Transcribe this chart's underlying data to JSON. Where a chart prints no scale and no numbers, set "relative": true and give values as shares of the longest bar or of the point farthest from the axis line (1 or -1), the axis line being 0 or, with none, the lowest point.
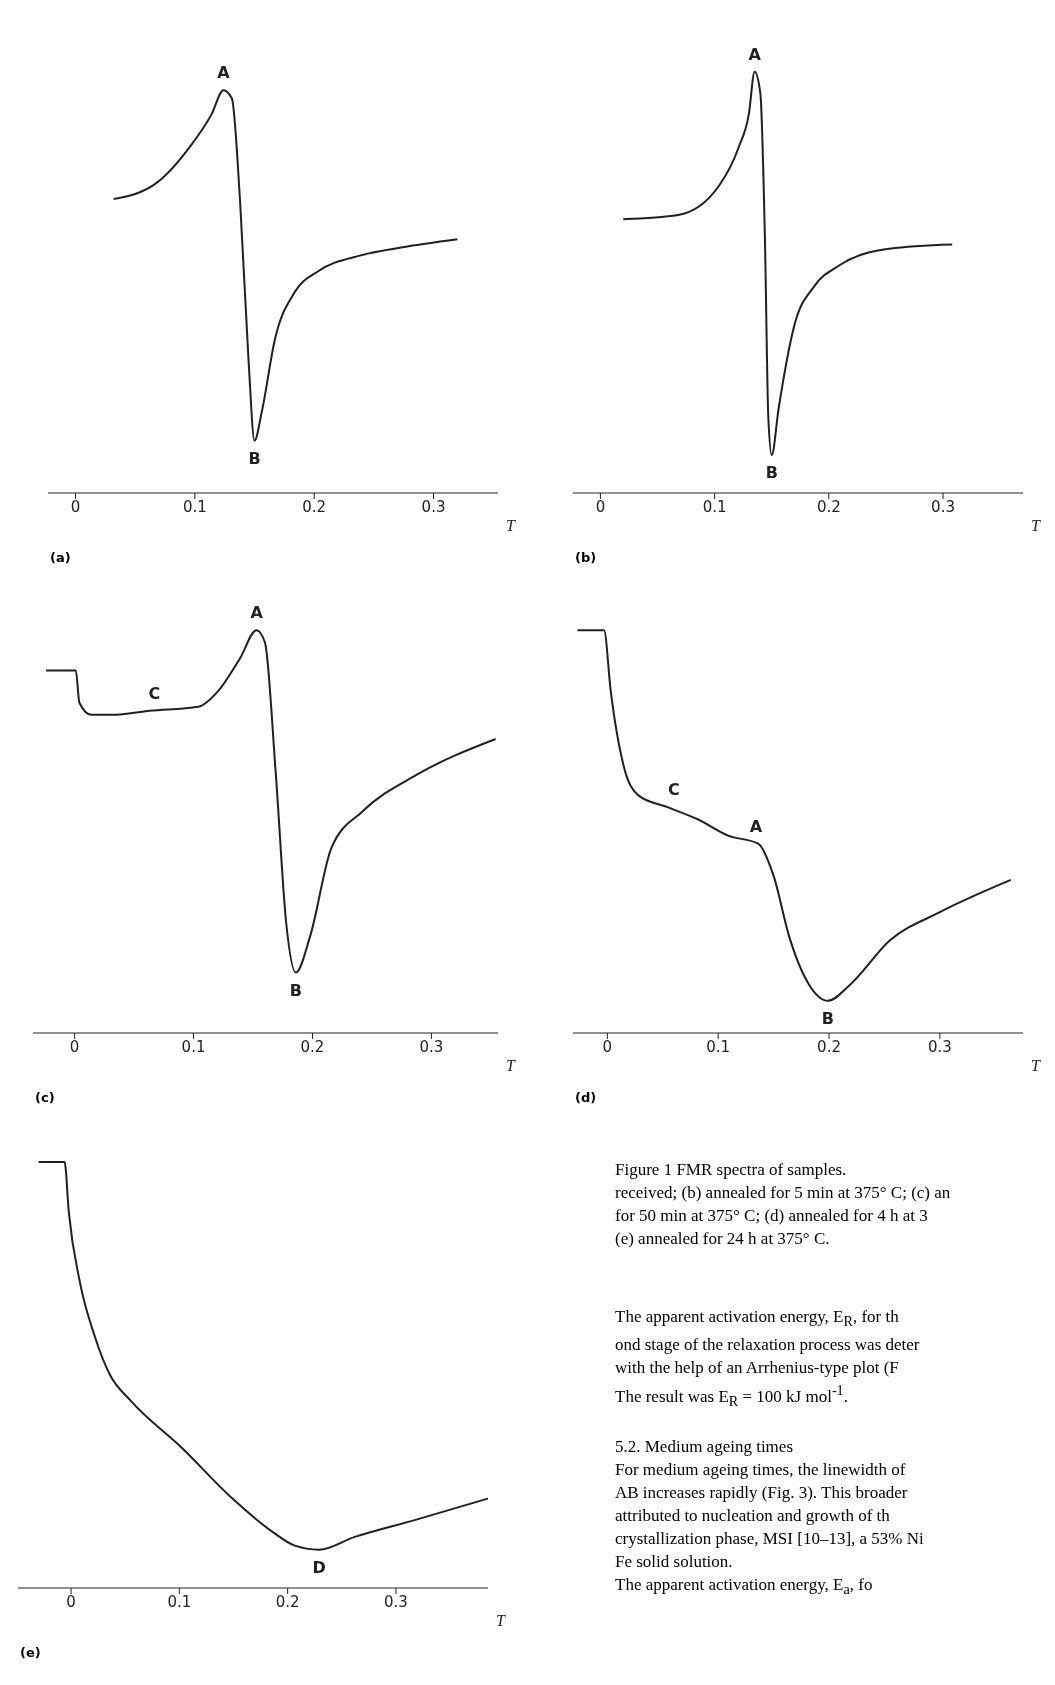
{
  "chart_data": [
    {
      "type": "line",
      "title": "(a)",
      "xlabel": "T",
      "relative": true,
      "color": "#231f20",
      "xlim": [
        -0.023,
        0.354
      ],
      "xticks": [
        0,
        0.1,
        0.2,
        0.3
      ],
      "x": [
        0.032,
        0.068,
        0.096,
        0.114,
        0.124,
        0.131,
        0.138,
        0.145,
        0.15,
        0.156,
        0.167,
        0.184,
        0.203,
        0.239,
        0.274,
        0.32
      ],
      "values": [
        0.73,
        0.77,
        0.86,
        0.94,
        1,
        0.98,
        0.72,
        0.33,
        0.13,
        0.2,
        0.38,
        0.5,
        0.55,
        0.59,
        0.61,
        0.63
      ],
      "annotations": [
        {
          "text": "A",
          "x": 0.124,
          "y": 1
        },
        {
          "text": "B",
          "x": 0.15,
          "y": 0.13
        }
      ]
    },
    {
      "type": "line",
      "title": "(b)",
      "xlabel": "T",
      "relative": true,
      "color": "#231f20",
      "xlim": [
        -0.024,
        0.37
      ],
      "xticks": [
        0,
        0.1,
        0.2,
        0.3
      ],
      "x": [
        0.02,
        0.068,
        0.104,
        0.121,
        0.13,
        0.135,
        0.14,
        0.144,
        0.147,
        0.15,
        0.156,
        0.17,
        0.187,
        0.209,
        0.253,
        0.308
      ],
      "values": [
        0.65,
        0.66,
        0.73,
        0.82,
        0.9,
        1,
        0.95,
        0.61,
        0.18,
        0.09,
        0.2,
        0.4,
        0.49,
        0.54,
        0.58,
        0.59
      ],
      "annotations": [
        {
          "text": "A",
          "x": 0.135,
          "y": 1
        },
        {
          "text": "B",
          "x": 0.15,
          "y": 0.09
        }
      ]
    },
    {
      "type": "line",
      "title": "(c)",
      "xlabel": "T",
      "relative": true,
      "color": "#231f20",
      "xlim": [
        -0.035,
        0.356
      ],
      "xticks": [
        0,
        0.1,
        0.2,
        0.3
      ],
      "x": [
        -0.024,
        0.001,
        0.004,
        0.014,
        0.032,
        0.063,
        0.104,
        0.121,
        0.139,
        0.153,
        0.16,
        0.169,
        0.178,
        0.186,
        0.198,
        0.216,
        0.242,
        0.287,
        0.354
      ],
      "values": [
        0.9,
        0.9,
        0.82,
        0.79,
        0.79,
        0.8,
        0.81,
        0.85,
        0.93,
        1,
        0.97,
        0.65,
        0.27,
        0.15,
        0.24,
        0.46,
        0.55,
        0.64,
        0.73
      ],
      "annotations": [
        {
          "text": "C",
          "x": 0.067,
          "y": 0.8
        },
        {
          "text": "A",
          "x": 0.153,
          "y": 1
        },
        {
          "text": "B",
          "x": 0.186,
          "y": 0.15
        }
      ]
    },
    {
      "type": "line",
      "title": "(d)",
      "xlabel": "T",
      "relative": true,
      "color": "#231f20",
      "xlim": [
        -0.031,
        0.375
      ],
      "xticks": [
        0,
        0.1,
        0.2,
        0.3
      ],
      "x": [
        -0.027,
        -0.003,
        0.003,
        0.015,
        0.028,
        0.055,
        0.082,
        0.109,
        0.136,
        0.15,
        0.164,
        0.182,
        0.199,
        0.219,
        0.255,
        0.3,
        0.364
      ],
      "values": [
        1,
        1,
        0.85,
        0.66,
        0.59,
        0.56,
        0.53,
        0.49,
        0.47,
        0.39,
        0.24,
        0.12,
        0.08,
        0.12,
        0.23,
        0.3,
        0.38
      ],
      "annotations": [
        {
          "text": "C",
          "x": 0.06,
          "y": 0.56
        },
        {
          "text": "A",
          "x": 0.134,
          "y": 0.47
        },
        {
          "text": "B",
          "x": 0.199,
          "y": 0.08
        }
      ]
    },
    {
      "type": "line",
      "title": "(e)",
      "xlabel": "T",
      "relative": true,
      "color": "#231f20",
      "xlim": [
        -0.049,
        0.385
      ],
      "xticks": [
        0,
        0.1,
        0.2,
        0.3
      ],
      "x": [
        -0.03,
        -0.006,
        -0.002,
        0.008,
        0.022,
        0.036,
        0.055,
        0.102,
        0.149,
        0.187,
        0.206,
        0.229,
        0.262,
        0.318,
        0.385
      ],
      "values": [
        1,
        1,
        0.88,
        0.72,
        0.59,
        0.5,
        0.44,
        0.33,
        0.21,
        0.13,
        0.1,
        0.09,
        0.12,
        0.16,
        0.21
      ],
      "annotations": [
        {
          "text": "D",
          "x": 0.229,
          "y": 0.09
        },
        "Figure 1 FMR spectra of samples.",
        "received; (b) annealed for 5 min at 375° C; (c) an",
        "for 50 min at 375° C; (d) annealed for 4 h at 3",
        "(e) annealed for 24 h at 375° C.",
        "The apparent activation energy, E$_{R}$, for th",
        "ond stage of the relaxation process was deter",
        "with the help of an Arrhenius-type plot (F",
        "The result was E$_{R}$ = 100 kJ mol$^{-1}$.",
        "5.2. Medium ageing times",
        "For medium ageing times, the linewidth of",
        "AB increases rapidly (Fig. 3). This broader",
        "attributed to nucleation and growth of th",
        "crystallization phase, MSI [10–13], a 53% Ni",
        "Fe solid solution.",
        "The apparent activation energy, E$_{a}$, fo"
      ]
    }
  ]
}
